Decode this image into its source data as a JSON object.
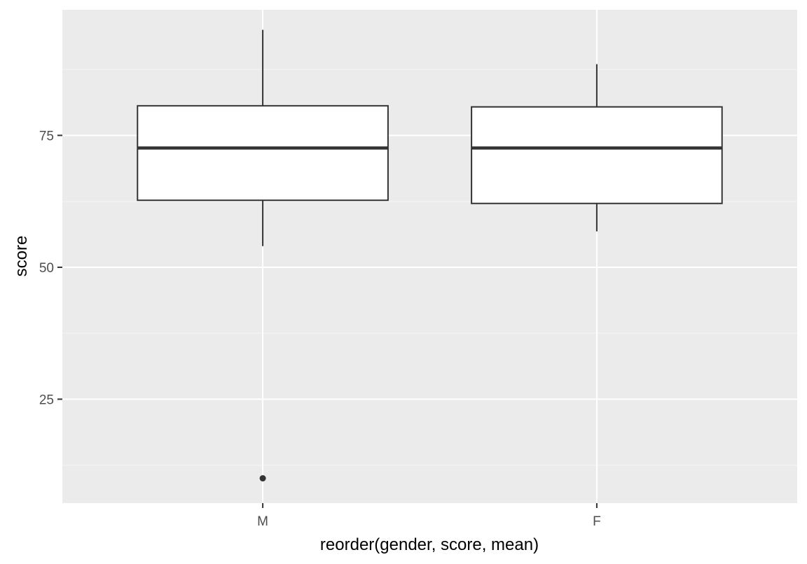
{
  "chart_data": {
    "type": "boxplot",
    "title": "",
    "xlabel": "reorder(gender, score, mean)",
    "ylabel": "score",
    "categories": [
      "M",
      "F"
    ],
    "boxes": [
      {
        "category": "M",
        "whisker_low": 54,
        "q1": 62.7,
        "median": 72.6,
        "q3": 80.6,
        "whisker_high": 95,
        "outliers": [
          10
        ]
      },
      {
        "category": "F",
        "whisker_low": 56.8,
        "q1": 62.1,
        "median": 72.6,
        "q3": 80.4,
        "whisker_high": 88.5,
        "outliers": []
      }
    ],
    "ylim": [
      5.3,
      98.8
    ],
    "y_ticks": [
      25,
      50,
      75
    ],
    "y_tick_labels": [
      "25",
      "50",
      "75"
    ],
    "grid": true,
    "colors": {
      "panel_background": "#ebebeb",
      "grid_major": "#ffffff",
      "grid_minor": "#f5f5f5",
      "box_fill": "#ffffff",
      "box_line": "#333333",
      "tick_text": "#4d4d4d",
      "title_text": "#000000"
    }
  }
}
